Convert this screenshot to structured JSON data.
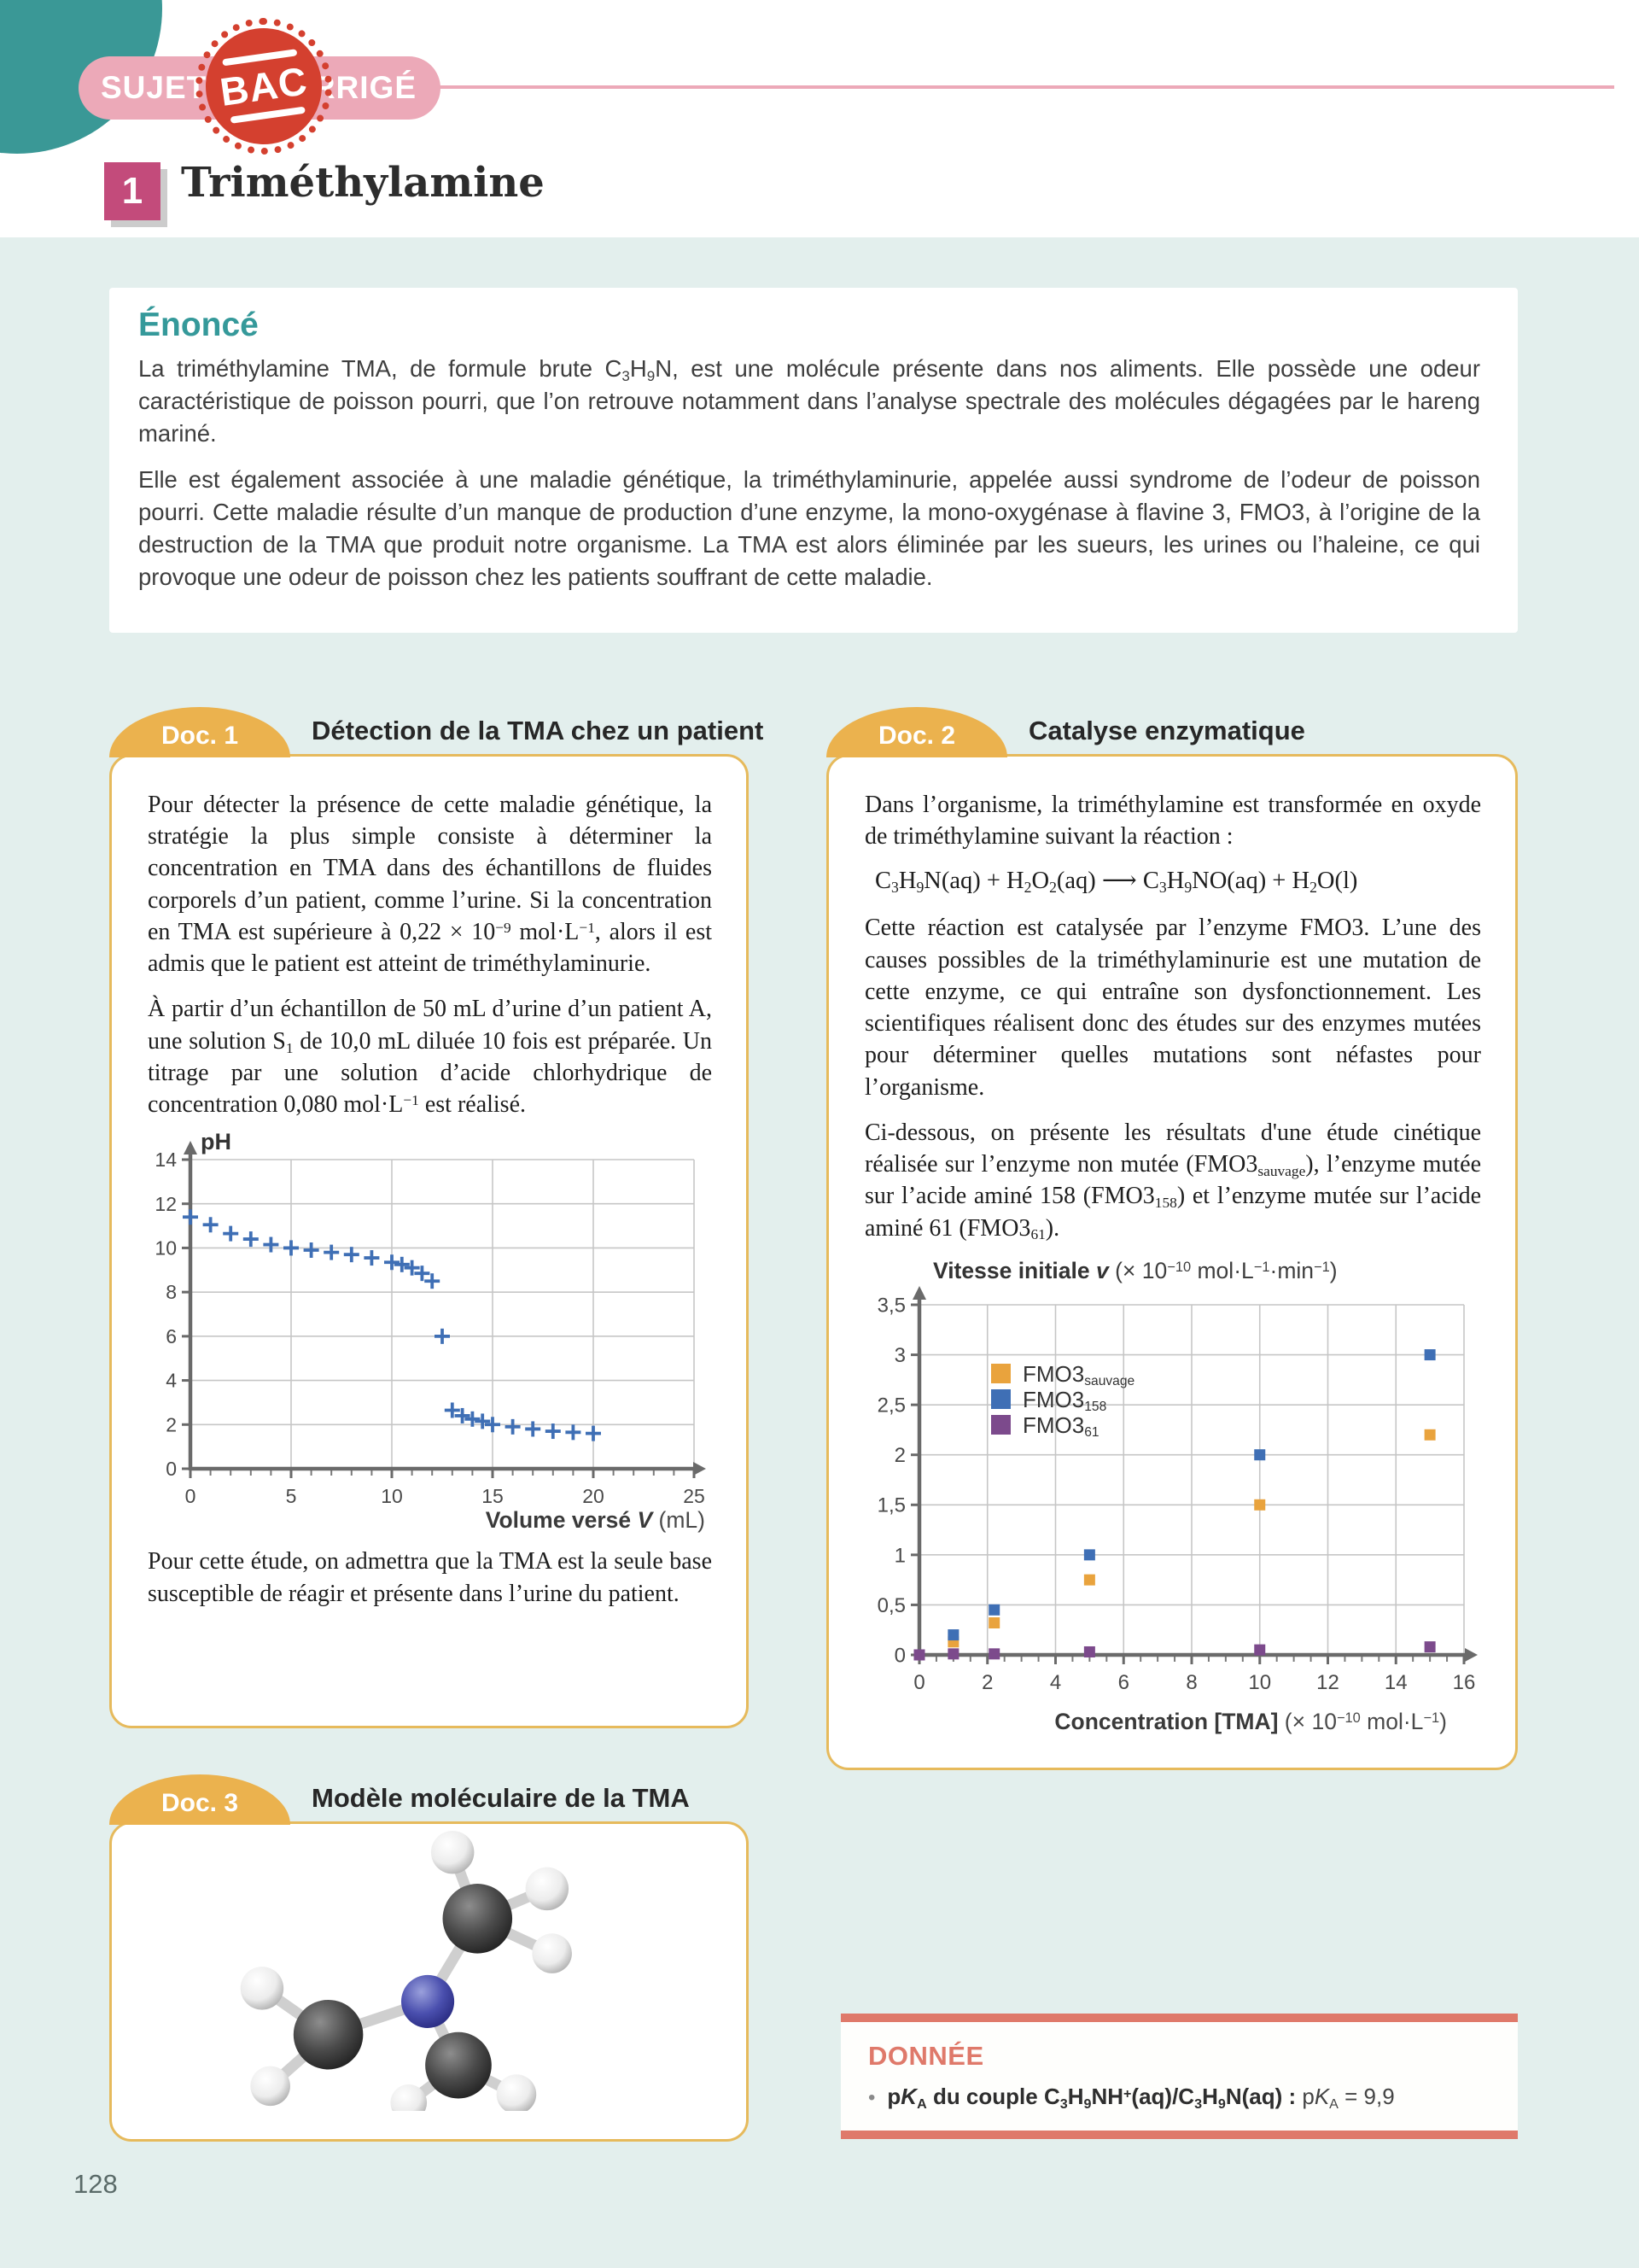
{
  "page": {
    "number": "128"
  },
  "header": {
    "badge_left": "SUJET",
    "badge_stamp": "BAC",
    "badge_right": "CORRIGÉ",
    "title_number": "1",
    "title_text": "Triméthylamine"
  },
  "colors": {
    "accent_teal": "#3A9896",
    "badge_pink": "#ECA9B8",
    "stamp_red": "#D4402F",
    "title_pink": "#C34B7B",
    "doc_badge_orange": "#EBB24E",
    "doc_border_orange": "#E6BA5C",
    "donnee_salmon": "#DF796A",
    "page_background": "#E3EFED",
    "marker_blue": "#3F6FB5",
    "marker_orange": "#E9A33D",
    "marker_purple": "#7C4A8C"
  },
  "enonce": {
    "heading": "Énoncé",
    "p1": "La triméthylamine TMA, de formule brute C~3~H~9~N, est une molécule présente dans nos aliments. Elle possède une odeur caractéristique de poisson pourri, que l’on retrouve notamment dans l’analyse spectrale des molécules dégagées par le hareng mariné.",
    "p2": "Elle est également associée à une maladie génétique, la triméthylaminurie, appelée aussi syndrome de l’odeur de poisson pourri. Cette maladie résulte d’un manque de production d’une enzyme, la mono-oxygénase à flavine 3, FMO3, à l’origine de la destruction de la TMA que produit notre organisme. La TMA est alors éliminée par les sueurs, les urines ou l’haleine, ce qui provoque une odeur de poisson chez les patients souffrant de cette maladie."
  },
  "doc1": {
    "badge": "Doc. 1",
    "title": "Détection de la TMA chez un patient",
    "p1": "Pour détecter la présence de cette maladie génétique, la stratégie la plus simple consiste à déterminer la concentration en TMA dans des échantillons de fluides corporels d’un patient, comme l’urine. Si la concentration en TMA est supérieure à 0,22 × 10^−9^ mol·L^−1^, alors il est admis que le patient est atteint de triméthylaminurie.",
    "p2": "À partir d’un échantillon de 50 mL d’urine d’un patient A, une solution S~1~ de 10,0 mL diluée 10 fois est préparée. Un titrage par une solution d’acide chlorhydrique de concentration 0,080 mol·L^−1^ est réalisé.",
    "p3": "Pour cette étude, on admettra que la TMA est la seule base susceptible de réagir et présente dans l’urine du patient."
  },
  "doc2": {
    "badge": "Doc. 2",
    "title": "Catalyse enzymatique",
    "p1": "Dans l’organisme, la triméthylamine est transformée en oxyde de triméthylamine suivant la réaction :",
    "equation": "C~3~H~9~N(aq) + H~2~O~2~(aq) ⟶ C~3~H~9~NO(aq) + H~2~O(l)",
    "p2": "Cette réaction est catalysée par l’enzyme FMO3. L’une des causes possibles de la triméthylaminurie est une mutation de cette enzyme, ce qui entraîne son dysfonctionnement. Les scientifiques réalisent donc des études sur des enzymes mutées pour déterminer quelles mutations sont néfastes pour l’organisme.",
    "p3": "Ci-dessous, on présente les résultats d'une étude cinétique réalisée sur l’enzyme non mutée (FMO3~sauvage~), l’enzyme mutée sur l’acide aminé 158 (FMO3~158~) et l’enzyme mutée sur l’acide aminé 61 (FMO3~61~)."
  },
  "doc3": {
    "badge": "Doc. 3",
    "title": "Modèle moléculaire de la TMA"
  },
  "donnee": {
    "heading": "DONNÉE",
    "bullet": "•",
    "bullet_bold": "p*K*~A~ du couple C~3~H~9~NH^+^(aq)/C~3~H~9~N(aq) : ",
    "bullet_value": "p*K*~A~ = 9,9"
  },
  "chart_data": [
    {
      "id": "titration-ph-curve",
      "type": "scatter",
      "marker": "plus",
      "color": "#3F6FB5",
      "ylabel": "pH",
      "xlabel": {
        "pre": "Volume versé ",
        "var": "V",
        "post": " (mL)"
      },
      "xlim": [
        0,
        25
      ],
      "ylim": [
        0,
        14
      ],
      "xtick_step": 5,
      "xtick_minor": 1,
      "ytick_step": 2,
      "grid": true,
      "points": [
        [
          0,
          11.4
        ],
        [
          1,
          11.05
        ],
        [
          2,
          10.65
        ],
        [
          3,
          10.4
        ],
        [
          4,
          10.15
        ],
        [
          5,
          10.0
        ],
        [
          6,
          9.9
        ],
        [
          7,
          9.8
        ],
        [
          8,
          9.7
        ],
        [
          9,
          9.55
        ],
        [
          10,
          9.35
        ],
        [
          10.5,
          9.25
        ],
        [
          11,
          9.1
        ],
        [
          11.5,
          8.85
        ],
        [
          12,
          8.5
        ],
        [
          12.5,
          6.0
        ],
        [
          13,
          2.65
        ],
        [
          13.5,
          2.4
        ],
        [
          14,
          2.25
        ],
        [
          14.5,
          2.15
        ],
        [
          15,
          2.0
        ],
        [
          16,
          1.9
        ],
        [
          17,
          1.8
        ],
        [
          18,
          1.7
        ],
        [
          19,
          1.65
        ],
        [
          20,
          1.6
        ]
      ]
    },
    {
      "id": "enzyme-kinetics",
      "type": "scatter",
      "marker": "square",
      "title": {
        "pre": "Vitesse initiale ",
        "var": "v",
        "unit": " (× 10^−10^ mol·L^−1^·min^−1^)"
      },
      "xlabel": {
        "main": "Concentration [TMA] ",
        "unit": "(× 10^−10^ mol·L^−1^)"
      },
      "xlim": [
        0,
        16
      ],
      "ylim": [
        0,
        3.5
      ],
      "xtick_step": 2,
      "xtick_minor": 0.5,
      "ytick_step": 0.5,
      "grid": true,
      "legend": [
        {
          "base": "FMO3",
          "sub": "sauvage",
          "color": "#E9A33D"
        },
        {
          "base": "FMO3",
          "sub": "158",
          "color": "#3F6FB5"
        },
        {
          "base": "FMO3",
          "sub": "61",
          "color": "#7C4A8C"
        }
      ],
      "series": [
        {
          "name": "FMO3_sauvage",
          "color": "#E9A33D",
          "points": [
            [
              0,
              0
            ],
            [
              1,
              0.13
            ],
            [
              2.2,
              0.32
            ],
            [
              5,
              0.75
            ],
            [
              10,
              1.5
            ],
            [
              15,
              2.2
            ]
          ]
        },
        {
          "name": "FMO3_158",
          "color": "#3F6FB5",
          "points": [
            [
              0,
              0
            ],
            [
              1,
              0.2
            ],
            [
              2.2,
              0.45
            ],
            [
              5,
              1.0
            ],
            [
              10,
              2.0
            ],
            [
              15,
              3.0
            ]
          ]
        },
        {
          "name": "FMO3_61",
          "color": "#7C4A8C",
          "points": [
            [
              0,
              0
            ],
            [
              1,
              0.01
            ],
            [
              2.2,
              0.01
            ],
            [
              5,
              0.03
            ],
            [
              10,
              0.05
            ],
            [
              15,
              0.08
            ]
          ]
        }
      ]
    }
  ]
}
